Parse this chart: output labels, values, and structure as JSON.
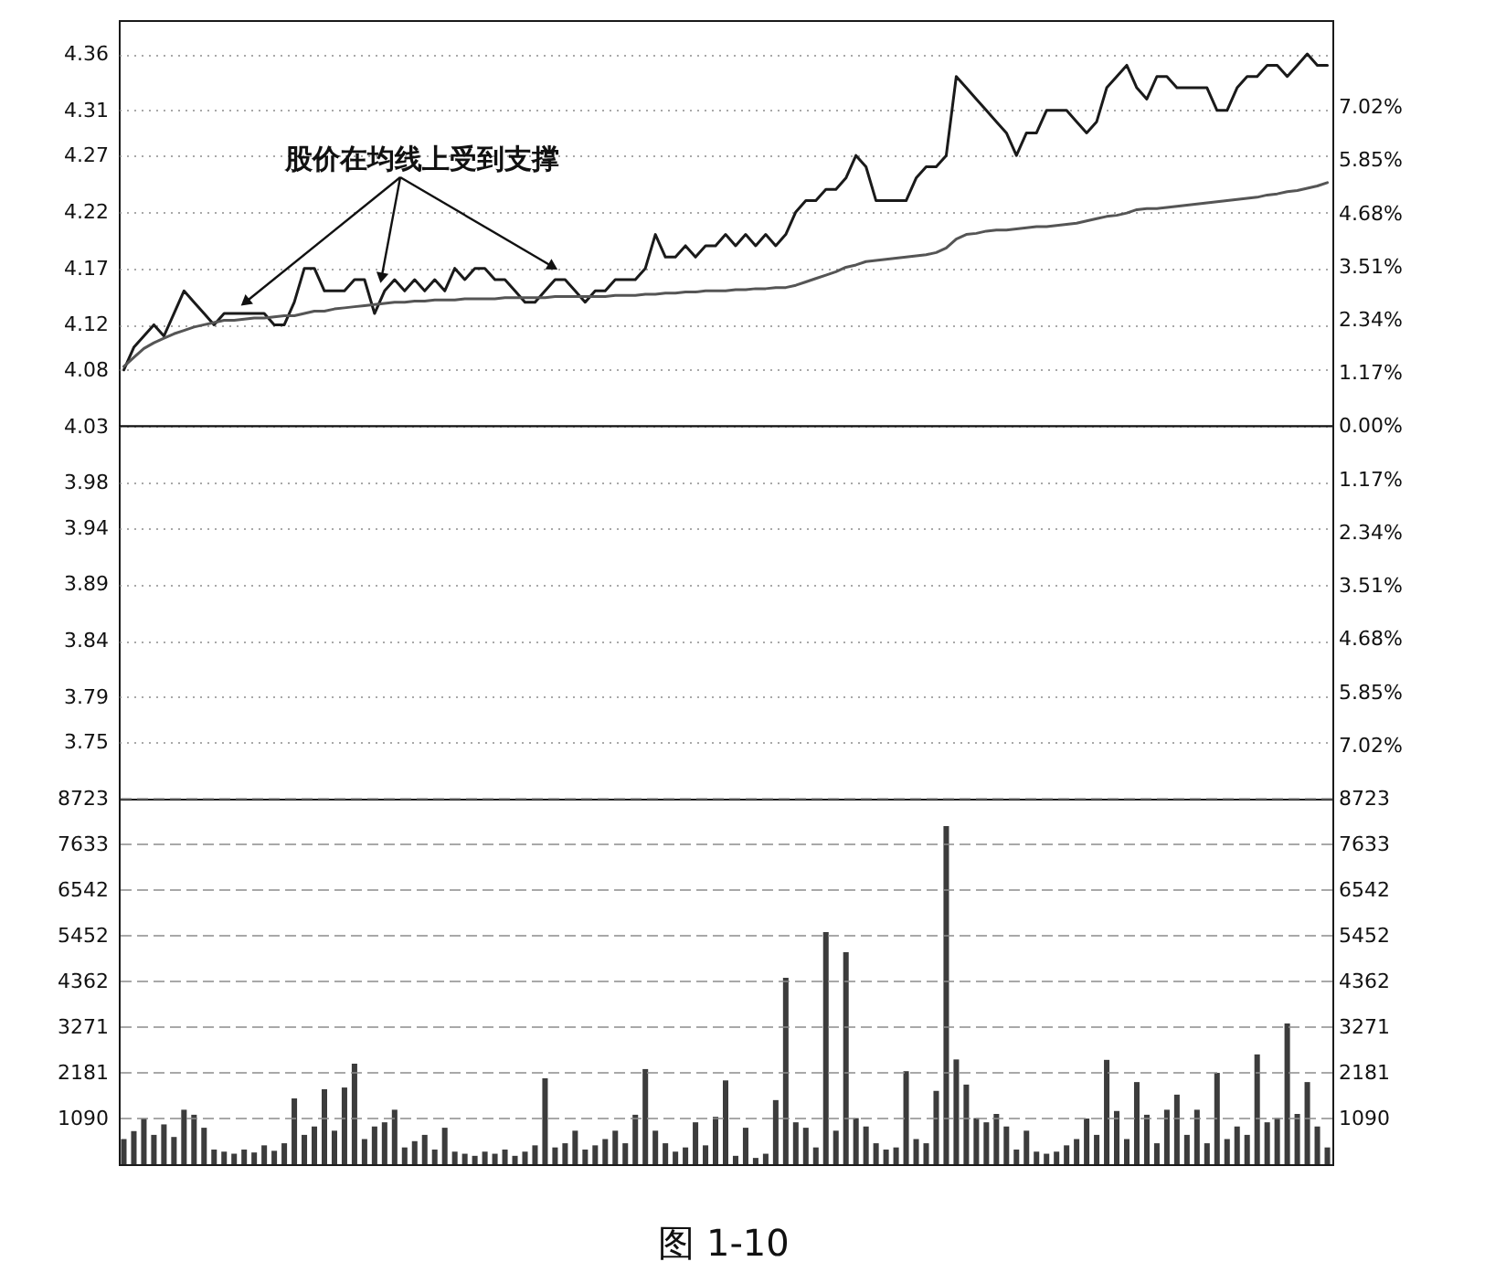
{
  "chart_data": [
    {
      "type": "line",
      "categories": [
        null,
        null,
        null,
        null,
        null,
        null,
        null,
        null,
        null,
        null,
        null,
        null,
        null,
        null,
        null,
        null,
        null,
        null,
        null,
        null,
        null,
        null,
        null,
        null,
        null,
        null,
        null,
        null,
        null,
        null,
        null,
        null,
        null,
        null,
        null,
        null,
        null,
        null,
        null,
        null,
        null,
        null,
        null,
        null,
        null,
        null,
        null,
        null,
        null,
        null,
        null,
        null,
        null,
        null,
        null,
        null,
        null,
        null,
        null,
        null,
        null,
        null,
        null,
        null,
        null,
        null,
        null,
        null,
        null,
        null,
        null,
        null,
        null,
        null,
        null,
        null,
        null,
        null,
        null,
        null,
        null,
        null,
        null,
        null,
        null,
        null,
        null,
        null,
        null,
        null,
        null,
        null,
        null,
        null,
        null,
        null,
        null,
        null,
        null,
        null,
        null,
        null,
        null,
        null,
        null,
        null,
        null,
        null,
        null,
        null,
        null,
        null,
        null,
        null,
        null,
        null,
        null,
        null,
        null,
        null,
        null
      ],
      "series": [
        {
          "color": "#1a1a1a",
          "values": [
            4.08,
            4.1,
            4.11,
            4.12,
            4.11,
            4.13,
            4.15,
            4.14,
            4.13,
            4.12,
            4.13,
            4.13,
            4.13,
            4.13,
            4.13,
            4.12,
            4.12,
            4.14,
            4.17,
            4.17,
            4.15,
            4.15,
            4.15,
            4.16,
            4.16,
            4.13,
            4.15,
            4.16,
            4.15,
            4.16,
            4.15,
            4.16,
            4.15,
            4.17,
            4.16,
            4.17,
            4.17,
            4.16,
            4.16,
            4.15,
            4.14,
            4.14,
            4.15,
            4.16,
            4.16,
            4.15,
            4.14,
            4.15,
            4.15,
            4.16,
            4.16,
            4.16,
            4.17,
            4.2,
            4.18,
            4.18,
            4.19,
            4.18,
            4.19,
            4.19,
            4.2,
            4.19,
            4.2,
            4.19,
            4.2,
            4.19,
            4.2,
            4.22,
            4.23,
            4.23,
            4.24,
            4.24,
            4.25,
            4.27,
            4.26,
            4.23,
            4.23,
            4.23,
            4.23,
            4.25,
            4.26,
            4.26,
            4.27,
            4.34,
            4.33,
            4.32,
            4.31,
            4.3,
            4.29,
            4.27,
            4.29,
            4.29,
            4.31,
            4.31,
            4.31,
            4.3,
            4.29,
            4.3,
            4.33,
            4.34,
            4.35,
            4.33,
            4.32,
            4.34,
            4.34,
            4.33,
            4.33,
            4.33,
            4.33,
            4.31,
            4.31,
            4.33,
            4.34,
            4.34,
            4.35,
            4.35,
            4.34,
            4.35,
            4.36,
            4.35,
            4.35
          ]
        },
        {
          "color": "#555555",
          "values": [
            4.083,
            4.091,
            4.099,
            4.104,
            4.108,
            4.112,
            4.115,
            4.118,
            4.12,
            4.122,
            4.124,
            4.124,
            4.125,
            4.126,
            4.126,
            4.127,
            4.128,
            4.128,
            4.13,
            4.132,
            4.132,
            4.134,
            4.135,
            4.136,
            4.137,
            4.138,
            4.139,
            4.14,
            4.14,
            4.141,
            4.141,
            4.142,
            4.142,
            4.142,
            4.143,
            4.143,
            4.143,
            4.143,
            4.144,
            4.144,
            4.144,
            4.144,
            4.144,
            4.145,
            4.145,
            4.145,
            4.145,
            4.145,
            4.145,
            4.146,
            4.146,
            4.146,
            4.147,
            4.147,
            4.148,
            4.148,
            4.149,
            4.149,
            4.15,
            4.15,
            4.15,
            4.151,
            4.151,
            4.152,
            4.152,
            4.153,
            4.153,
            4.155,
            4.158,
            4.161,
            4.164,
            4.167,
            4.171,
            4.173,
            4.176,
            4.177,
            4.178,
            4.179,
            4.18,
            4.181,
            4.182,
            4.184,
            4.188,
            4.196,
            4.2,
            4.201,
            4.203,
            4.204,
            4.204,
            4.205,
            4.206,
            4.207,
            4.207,
            4.208,
            4.209,
            4.21,
            4.212,
            4.214,
            4.216,
            4.217,
            4.219,
            4.222,
            4.223,
            4.223,
            4.224,
            4.225,
            4.226,
            4.227,
            4.228,
            4.229,
            4.23,
            4.231,
            4.232,
            4.233,
            4.235,
            4.236,
            4.238,
            4.239,
            4.241,
            4.243,
            4.246
          ]
        }
      ],
      "ylim": [
        3.7,
        4.39
      ],
      "yticks": [
        3.75,
        3.79,
        3.84,
        3.89,
        3.94,
        3.98,
        4.03,
        4.08,
        4.12,
        4.17,
        4.22,
        4.27,
        4.31,
        4.36
      ],
      "y2lim": [
        -8.19,
        8.93
      ],
      "y2ticks": [
        {
          "value": 7.02,
          "label": "7.02%"
        },
        {
          "value": 5.85,
          "label": "5.85%"
        },
        {
          "value": 4.68,
          "label": "4.68%"
        },
        {
          "value": 3.51,
          "label": "3.51%"
        },
        {
          "value": 2.34,
          "label": "2.34%"
        },
        {
          "value": 1.17,
          "label": "1.17%"
        },
        {
          "value": 0,
          "label": "0.00%"
        },
        {
          "value": -1.17,
          "label": "1.17%"
        },
        {
          "value": -2.34,
          "label": "2.34%"
        },
        {
          "value": -3.51,
          "label": "3.51%"
        },
        {
          "value": -4.68,
          "label": "4.68%"
        },
        {
          "value": -5.85,
          "label": "5.85%"
        },
        {
          "value": -7.02,
          "label": "7.02%"
        }
      ],
      "ref_lines": [
        {
          "axis": "y2",
          "value": 0
        }
      ],
      "grid": "y",
      "tick_labels": "y",
      "annotations": [
        "股价在均线上受到支撑"
      ]
    },
    {
      "type": "bar",
      "categories": [
        null,
        null,
        null,
        null,
        null,
        null,
        null,
        null,
        null,
        null,
        null,
        null,
        null,
        null,
        null,
        null,
        null,
        null,
        null,
        null,
        null,
        null,
        null,
        null,
        null,
        null,
        null,
        null,
        null,
        null,
        null,
        null,
        null,
        null,
        null,
        null,
        null,
        null,
        null,
        null,
        null,
        null,
        null,
        null,
        null,
        null,
        null,
        null,
        null,
        null,
        null,
        null,
        null,
        null,
        null,
        null,
        null,
        null,
        null,
        null,
        null,
        null,
        null,
        null,
        null,
        null,
        null,
        null,
        null,
        null,
        null,
        null,
        null,
        null,
        null,
        null,
        null,
        null,
        null,
        null,
        null,
        null,
        null,
        null,
        null,
        null,
        null,
        null,
        null,
        null,
        null,
        null,
        null,
        null,
        null,
        null,
        null,
        null,
        null,
        null,
        null,
        null,
        null,
        null,
        null,
        null,
        null,
        null,
        null,
        null,
        null,
        null,
        null,
        null,
        null,
        null,
        null,
        null,
        null,
        null,
        null
      ],
      "values": [
        600,
        790,
        1090,
        700,
        950,
        650,
        1300,
        1180,
        870,
        350,
        300,
        250,
        350,
        280,
        450,
        320,
        500,
        1570,
        700,
        900,
        1790,
        800,
        1830,
        2400,
        600,
        900,
        1000,
        1300,
        400,
        550,
        700,
        350,
        870,
        300,
        250,
        200,
        300,
        250,
        350,
        200,
        300,
        450,
        2050,
        400,
        500,
        800,
        350,
        450,
        600,
        800,
        500,
        1180,
        2270,
        800,
        500,
        300,
        400,
        1000,
        450,
        1130,
        2000,
        200,
        870,
        150,
        250,
        1530,
        4450,
        1000,
        870,
        400,
        5540,
        800,
        5060,
        1100,
        900,
        500,
        350,
        400,
        2220,
        600,
        500,
        1750,
        8070,
        2500,
        1900,
        1100,
        1000,
        1200,
        900,
        350,
        800,
        300,
        250,
        300,
        450,
        600,
        1090,
        700,
        2490,
        1270,
        600,
        1960,
        1180,
        500,
        1300,
        1660,
        700,
        1300,
        500,
        2180,
        600,
        900,
        700,
        2620,
        1000,
        1100,
        3360,
        1200,
        1960,
        900,
        400
      ],
      "color": "#3c3c3c",
      "ylim": [
        0,
        8723
      ],
      "yticks": [
        1090,
        2181,
        3271,
        4362,
        5452,
        6542,
        7633,
        8723
      ],
      "y2lim": [
        0,
        8723
      ],
      "y2ticks": [
        1090,
        2181,
        3271,
        4362,
        5452,
        6542,
        7633,
        8723
      ],
      "grid": "y",
      "tick_labels": "y",
      "annotations": [
        "图 1-10"
      ]
    }
  ]
}
